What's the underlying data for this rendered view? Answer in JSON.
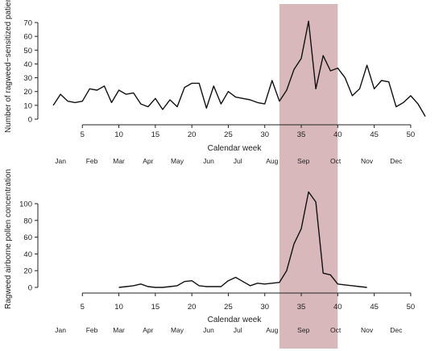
{
  "highlight": {
    "from_week": 32,
    "to_week": 40,
    "color": "#d9b8bb"
  },
  "chart_data": [
    {
      "type": "line",
      "ylabel": "Number of ragweed−sensitized patients",
      "xlabel": "Calendar week",
      "xlim": [
        0,
        53
      ],
      "ylim": [
        0,
        75
      ],
      "xticks": [
        5,
        10,
        15,
        20,
        25,
        30,
        35,
        40,
        45,
        50
      ],
      "yticks": [
        0,
        10,
        20,
        30,
        40,
        50,
        60,
        70
      ],
      "x": [
        1,
        2,
        3,
        4,
        5,
        6,
        7,
        8,
        9,
        10,
        11,
        12,
        13,
        14,
        15,
        16,
        17,
        18,
        19,
        20,
        21,
        22,
        23,
        24,
        25,
        26,
        27,
        28,
        29,
        30,
        31,
        32,
        33,
        34,
        35,
        36,
        37,
        38,
        39,
        40,
        41,
        42,
        43,
        44,
        45,
        46,
        47,
        48,
        49,
        50,
        51,
        52
      ],
      "values": [
        10,
        18,
        13,
        12,
        13,
        22,
        21,
        24,
        12,
        21,
        18,
        19,
        11,
        9,
        15,
        7,
        14,
        9,
        23,
        26,
        26,
        8,
        24,
        11,
        20,
        16,
        15,
        14,
        12,
        11,
        28,
        13,
        21,
        36,
        44,
        71,
        22,
        46,
        35,
        37,
        30,
        17,
        22,
        39,
        22,
        28,
        27,
        9,
        12,
        17,
        11,
        2
      ],
      "month_labels": [
        "Jan",
        "Feb",
        "Mar",
        "Apr",
        "May",
        "Jun",
        "Jul",
        "Aug",
        "Sep",
        "Oct",
        "Nov",
        "Dec"
      ]
    },
    {
      "type": "line",
      "ylabel": "Ragweed airborne pollen concentration",
      "xlabel": "Calendar week",
      "xlim": [
        0,
        53
      ],
      "ylim": [
        0,
        120
      ],
      "xticks": [
        5,
        10,
        15,
        20,
        25,
        30,
        35,
        40,
        45,
        50
      ],
      "yticks": [
        0,
        20,
        40,
        60,
        80,
        100
      ],
      "x": [
        10,
        11,
        12,
        13,
        14,
        15,
        16,
        17,
        18,
        19,
        20,
        21,
        22,
        23,
        24,
        25,
        26,
        27,
        28,
        29,
        30,
        31,
        32,
        33,
        34,
        35,
        36,
        37,
        38,
        39,
        40,
        41,
        42,
        43,
        44
      ],
      "values": [
        0,
        1,
        2,
        4,
        1,
        0,
        0,
        1,
        2,
        7,
        8,
        2,
        1,
        1,
        1,
        8,
        12,
        7,
        2,
        5,
        4,
        5,
        6,
        20,
        52,
        70,
        114,
        102,
        17,
        15,
        4,
        3,
        2,
        1,
        0
      ],
      "month_labels": [
        "Jan",
        "Feb",
        "Mar",
        "Apr",
        "May",
        "Jun",
        "Jul",
        "Aug",
        "Sep",
        "Oct",
        "Nov",
        "Dec"
      ]
    }
  ]
}
